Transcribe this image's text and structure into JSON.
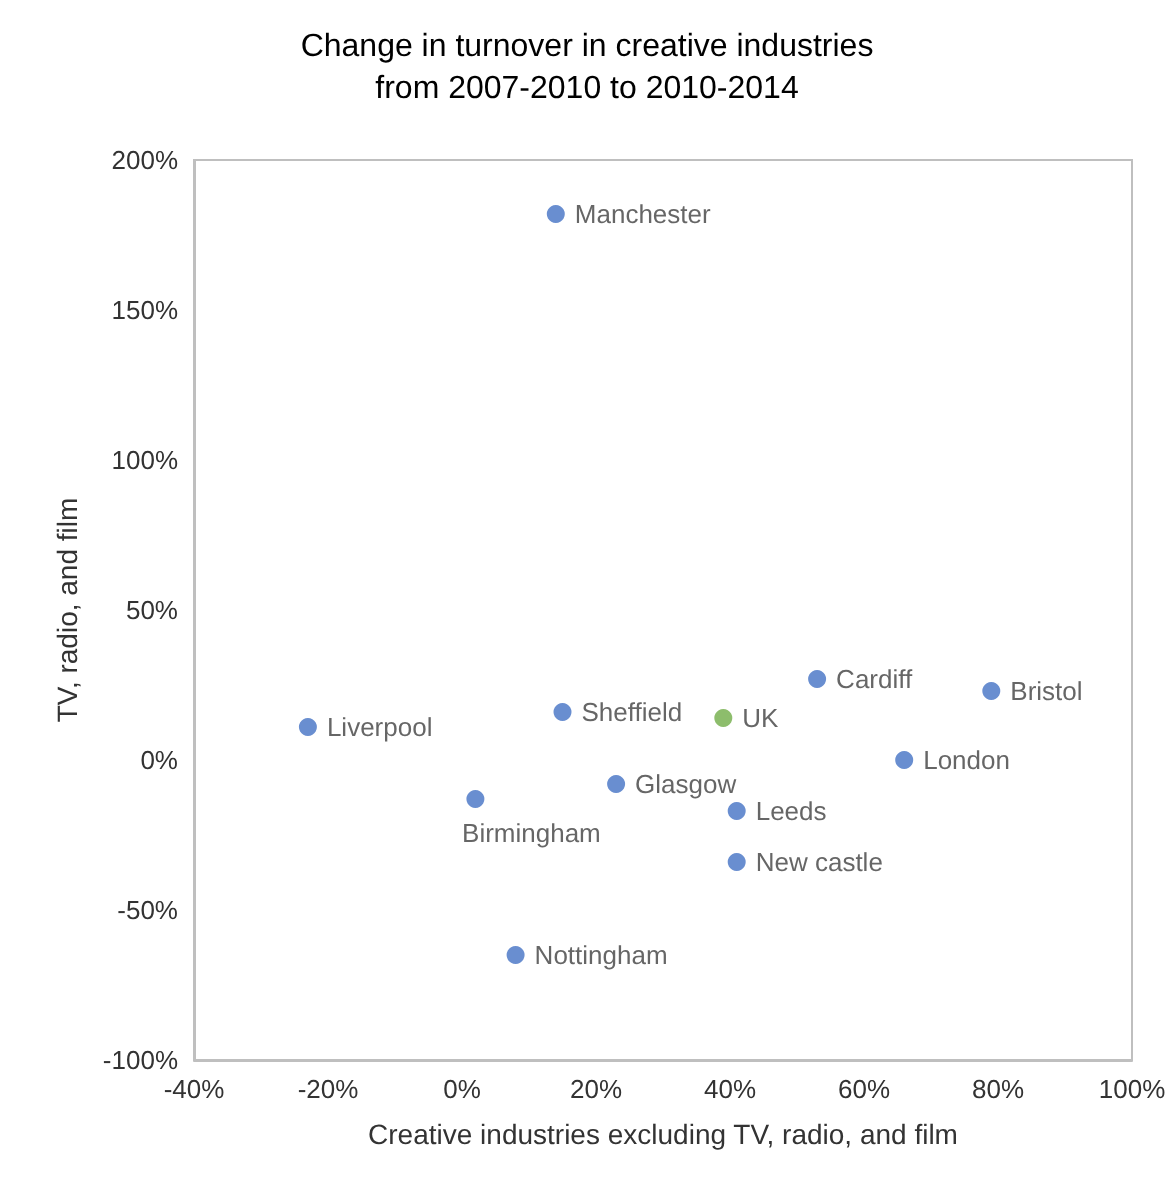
{
  "chart_data": {
    "type": "scatter",
    "title": "Change in turnover in creative industries\nfrom 2007-2010 to 2010-2014",
    "xlabel": "Creative industries excluding TV, radio, and film",
    "ylabel": "TV, radio, and film",
    "xlim": [
      -40,
      100
    ],
    "xticks": [
      {
        "value": -40,
        "label": "-40%"
      },
      {
        "value": -20,
        "label": "-20%"
      },
      {
        "value": 0,
        "label": "0%"
      },
      {
        "value": 20,
        "label": "20%"
      },
      {
        "value": 40,
        "label": "40%"
      },
      {
        "value": 60,
        "label": "60%"
      },
      {
        "value": 80,
        "label": "80%"
      },
      {
        "value": 100,
        "label": "100%"
      }
    ],
    "ylim": [
      -100,
      200
    ],
    "yticks": [
      {
        "value": -100,
        "label": "-100%"
      },
      {
        "value": -50,
        "label": "-50%"
      },
      {
        "value": 0,
        "label": "0%"
      },
      {
        "value": 50,
        "label": "50%"
      },
      {
        "value": 100,
        "label": "100%"
      },
      {
        "value": 150,
        "label": "150%"
      },
      {
        "value": 200,
        "label": "200%"
      }
    ],
    "grid": false,
    "legend": false,
    "marker": "circle",
    "series": [
      {
        "name": "Manchester",
        "color": "#4472c4",
        "x": [
          14
        ],
        "values": [
          182
        ]
      },
      {
        "name": "Liverpool",
        "color": "#4472c4",
        "x": [
          -23
        ],
        "values": [
          11
        ]
      },
      {
        "name": "Sheffield",
        "color": "#4472c4",
        "x": [
          15
        ],
        "values": [
          16
        ]
      },
      {
        "name": "UK",
        "color": "#70ad47",
        "x": [
          39
        ],
        "values": [
          14
        ]
      },
      {
        "name": "Cardiff",
        "color": "#4472c4",
        "x": [
          53
        ],
        "values": [
          27
        ]
      },
      {
        "name": "Bristol",
        "color": "#4472c4",
        "x": [
          79
        ],
        "values": [
          23
        ]
      },
      {
        "name": "London",
        "color": "#4472c4",
        "x": [
          66
        ],
        "values": [
          0
        ]
      },
      {
        "name": "Glasgow",
        "color": "#4472c4",
        "x": [
          23
        ],
        "values": [
          -8
        ]
      },
      {
        "name": "Birmingham",
        "color": "#4472c4",
        "x": [
          2
        ],
        "values": [
          -13
        ]
      },
      {
        "name": "Leeds",
        "color": "#4472c4",
        "x": [
          41
        ],
        "values": [
          -17
        ]
      },
      {
        "name": "New castle",
        "color": "#4472c4",
        "x": [
          41
        ],
        "values": [
          -34
        ]
      },
      {
        "name": "Nottingham",
        "color": "#4472c4",
        "x": [
          8
        ],
        "values": [
          -65
        ]
      }
    ]
  }
}
